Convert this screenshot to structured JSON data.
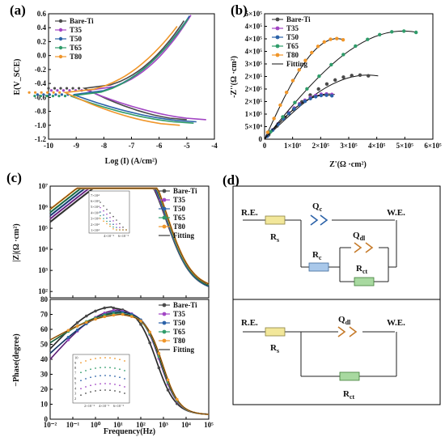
{
  "colors": {
    "Bare-Ti": "#4a4a4a",
    "T35": "#a246c4",
    "T50": "#2b62a8",
    "T65": "#2f9c6a",
    "T80": "#f0962a",
    "fit": "#111111"
  },
  "panel_labels": {
    "a": "(a)",
    "b": "(b)",
    "c": "(c)",
    "d": "(d)"
  },
  "series_names": [
    "Bare-Ti",
    "T35",
    "T50",
    "T65",
    "T80"
  ],
  "fitting_label": "Fitting",
  "chart_data": [
    {
      "id": "a",
      "type": "line",
      "xlabel": "Log (I) (A/cm²)",
      "ylabel": "E(V_SCE)",
      "xlim": [
        -10,
        -4
      ],
      "ylim": [
        -1.2,
        0.6
      ],
      "xticks": [
        -10,
        -9,
        -8,
        -7,
        -6,
        -5,
        -4
      ],
      "yticks": [
        -1.2,
        -1.0,
        -0.8,
        -0.6,
        -0.4,
        -0.2,
        0.0,
        0.2,
        0.4,
        0.6
      ],
      "xtick_labels": [
        "-10",
        "-9",
        "-8",
        "-7",
        "-6",
        "-5",
        "-4"
      ],
      "ytick_labels": [
        "-1.2",
        "-1.0",
        "-0.8",
        "-0.6",
        "-0.4",
        "-0.2",
        "0.0",
        "0.2",
        "0.4",
        "0.6"
      ],
      "legend": "top-left",
      "series": [
        {
          "name": "Bare-Ti",
          "ecorr": -0.47,
          "icorr": -7.1,
          "anodic_end": [
            -5.1,
            0.5
          ],
          "cathodic_end": [
            -5.0,
            -0.92
          ]
        },
        {
          "name": "T35",
          "ecorr": -0.5,
          "icorr": -7.0,
          "anodic_end": [
            -4.85,
            0.58
          ],
          "cathodic_end": [
            -4.3,
            -0.92
          ]
        },
        {
          "name": "T50",
          "ecorr": -0.56,
          "icorr": -7.5,
          "anodic_end": [
            -4.9,
            0.57
          ],
          "cathodic_end": [
            -4.65,
            -0.95
          ]
        },
        {
          "name": "T65",
          "ecorr": -0.58,
          "icorr": -7.6,
          "anodic_end": [
            -4.95,
            0.53
          ],
          "cathodic_end": [
            -4.75,
            -0.97
          ]
        },
        {
          "name": "T80",
          "ecorr": -0.53,
          "icorr": -7.8,
          "anodic_end": [
            -5.35,
            0.42
          ],
          "cathodic_end": [
            -5.25,
            -1.0
          ]
        }
      ]
    },
    {
      "id": "b",
      "type": "scatter",
      "xlabel": "Z'(Ω ·cm²)",
      "ylabel": "-Z''(Ω ·cm²)",
      "xlim": [
        0,
        600000
      ],
      "ylim": [
        0,
        500000
      ],
      "xticks": [
        0,
        100000,
        200000,
        300000,
        400000,
        500000,
        600000
      ],
      "yticks": [
        0,
        50000,
        100000,
        150000,
        200000,
        250000,
        300000,
        350000,
        400000,
        450000,
        500000
      ],
      "xtick_labels": [
        "0",
        "1×10⁵",
        "2×10⁵",
        "3×10⁵",
        "4×10⁵",
        "5×10⁵",
        "6×10⁵"
      ],
      "ytick_labels": [
        "0",
        "5×10⁴",
        "1×10⁵",
        "2×10⁵",
        "2×10⁵",
        "2×10⁵",
        "3×10⁵",
        "4×10⁵",
        "4×10⁵",
        "4×10⁵",
        "5×10⁵"
      ],
      "legend": "top-left",
      "series": [
        {
          "name": "Bare-Ti",
          "x_end": 370000,
          "y_peak": 255000,
          "x_fit_end": 405000
        },
        {
          "name": "T35",
          "x_end": 240000,
          "y_peak": 180000,
          "x_fit_end": 250000
        },
        {
          "name": "T50",
          "x_end": 240000,
          "y_peak": 175000,
          "x_fit_end": 240000
        },
        {
          "name": "T65",
          "x_end": 540000,
          "y_peak": 430000,
          "x_fit_end": 545000
        },
        {
          "name": "T80",
          "x_end": 280000,
          "y_peak": 400000,
          "x_fit_end": 285000
        }
      ]
    },
    {
      "id": "c-top",
      "type": "line",
      "xlabel": "",
      "ylabel": "|Z|(Ω ·cm²)",
      "xlim": [
        -2,
        5
      ],
      "ylim": [
        1.7,
        7
      ],
      "log_axes": true,
      "yticks": [
        2,
        3,
        4,
        5,
        6,
        7
      ],
      "ytick_labels": [
        "10²",
        "10³",
        "10⁴",
        "10⁵",
        "10⁶",
        "10⁷"
      ],
      "legend": "top-right",
      "series": [
        {
          "name": "Bare-Ti",
          "log_z_low": 5.3,
          "log_z_high": 2.0
        },
        {
          "name": "T35",
          "log_z_low": 5.45,
          "log_z_high": 2.05
        },
        {
          "name": "T50",
          "log_z_low": 5.6,
          "log_z_high": 2.0
        },
        {
          "name": "T65",
          "log_z_low": 5.75,
          "log_z_high": 2.05
        },
        {
          "name": "T80",
          "log_z_low": 5.9,
          "log_z_high": 2.1
        }
      ],
      "inset": {
        "ytick_labels": [
          "1×10⁴",
          "2×10⁴",
          "3×10⁴",
          "4×10⁴",
          "5×10⁴",
          "6×10⁴",
          "7×10⁴"
        ],
        "xtick_labels": [
          "4×10⁻²",
          "6×10⁻²"
        ]
      }
    },
    {
      "id": "c-bottom",
      "type": "line",
      "xlabel": "Frequency(Hz)",
      "ylabel": "−Phase(degree)",
      "xlim": [
        -2,
        5
      ],
      "ylim": [
        0,
        80
      ],
      "xticks": [
        -2,
        -1,
        0,
        1,
        2,
        3,
        4,
        5
      ],
      "xtick_labels": [
        "10⁻²",
        "10⁻¹",
        "10⁰",
        "10¹",
        "10²",
        "10³",
        "10⁴",
        "10⁵"
      ],
      "yticks": [
        0,
        10,
        20,
        30,
        40,
        50,
        60,
        70,
        80
      ],
      "ytick_labels": [
        "0",
        "10",
        "20",
        "30",
        "40",
        "50",
        "60",
        "70",
        "80"
      ],
      "legend": "top-right",
      "series": [
        {
          "name": "Bare-Ti",
          "peak": 75,
          "peak_logf": 0.8,
          "start": 47
        },
        {
          "name": "T35",
          "peak": 73,
          "peak_logf": 1.1,
          "start": 40
        },
        {
          "name": "T50",
          "peak": 72,
          "peak_logf": 1.2,
          "start": 44
        },
        {
          "name": "T65",
          "peak": 71,
          "peak_logf": 1.2,
          "start": 51
        },
        {
          "name": "T80",
          "peak": 70,
          "peak_logf": 1.3,
          "start": 53
        }
      ],
      "inset": {
        "ytick_labels": [
          "2",
          "3",
          "4",
          "5",
          "6",
          "7",
          "8",
          "9",
          "10"
        ],
        "xtick_labels": [
          "2×10⁻²",
          "4×10⁻²",
          "6×10⁻²"
        ]
      }
    }
  ],
  "circuits": {
    "top": {
      "RE": "R.E.",
      "WE": "W.E.",
      "Rs": "R",
      "Rs_sub": "s",
      "Qc": "Q",
      "Qc_sub": "c",
      "Rc": "R",
      "Rc_sub": "c",
      "Qdl": "Q",
      "Qdl_sub": "dl",
      "Rct": "R",
      "Rct_sub": "ct"
    },
    "bottom": {
      "RE": "R.E.",
      "WE": "W.E.",
      "Rs": "R",
      "Rs_sub": "s",
      "Qdl": "Q",
      "Qdl_sub": "dl",
      "Rct": "R",
      "Rct_sub": "ct"
    }
  }
}
